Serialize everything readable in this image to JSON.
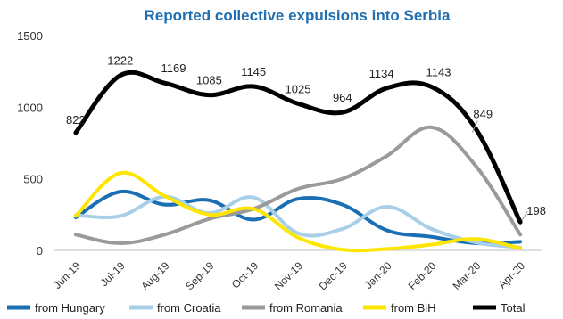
{
  "chart_data": {
    "type": "line",
    "title": "Reported collective expulsions into Serbia",
    "categories": [
      "Jun-19",
      "Jul-19",
      "Aug-19",
      "Sep-19",
      "Oct-19",
      "Nov-19",
      "Dec-19",
      "Jan-20",
      "Feb-20",
      "Mar-20",
      "Apr-20"
    ],
    "ylim": [
      0,
      1500
    ],
    "yticks": [
      0,
      500,
      1000,
      1500
    ],
    "grid": false,
    "legend_position": "bottom",
    "series": [
      {
        "name": "from Hungary",
        "color": "#1a6fb4",
        "values": [
          230,
          410,
          320,
          350,
          215,
          360,
          320,
          140,
          95,
          50,
          60
        ]
      },
      {
        "name": "from Croatia",
        "color": "#a9cfe8",
        "values": [
          245,
          240,
          375,
          260,
          370,
          120,
          150,
          305,
          150,
          55,
          20
        ]
      },
      {
        "name": "from Romania",
        "color": "#9a9a9a",
        "values": [
          110,
          50,
          110,
          220,
          290,
          430,
          500,
          660,
          860,
          590,
          110
        ]
      },
      {
        "name": "from BiH",
        "color": "#ffe600",
        "values": [
          240,
          540,
          380,
          250,
          290,
          90,
          5,
          10,
          40,
          80,
          15
        ]
      },
      {
        "name": "Total",
        "color": "#000000",
        "values": [
          822,
          1222,
          1169,
          1085,
          1145,
          1025,
          964,
          1134,
          1143,
          849,
          198
        ],
        "labels": [
          "822",
          "1222",
          "1169",
          "1085",
          "1145",
          "1025",
          "964",
          "1134",
          "1143",
          "849",
          "198"
        ]
      }
    ]
  }
}
